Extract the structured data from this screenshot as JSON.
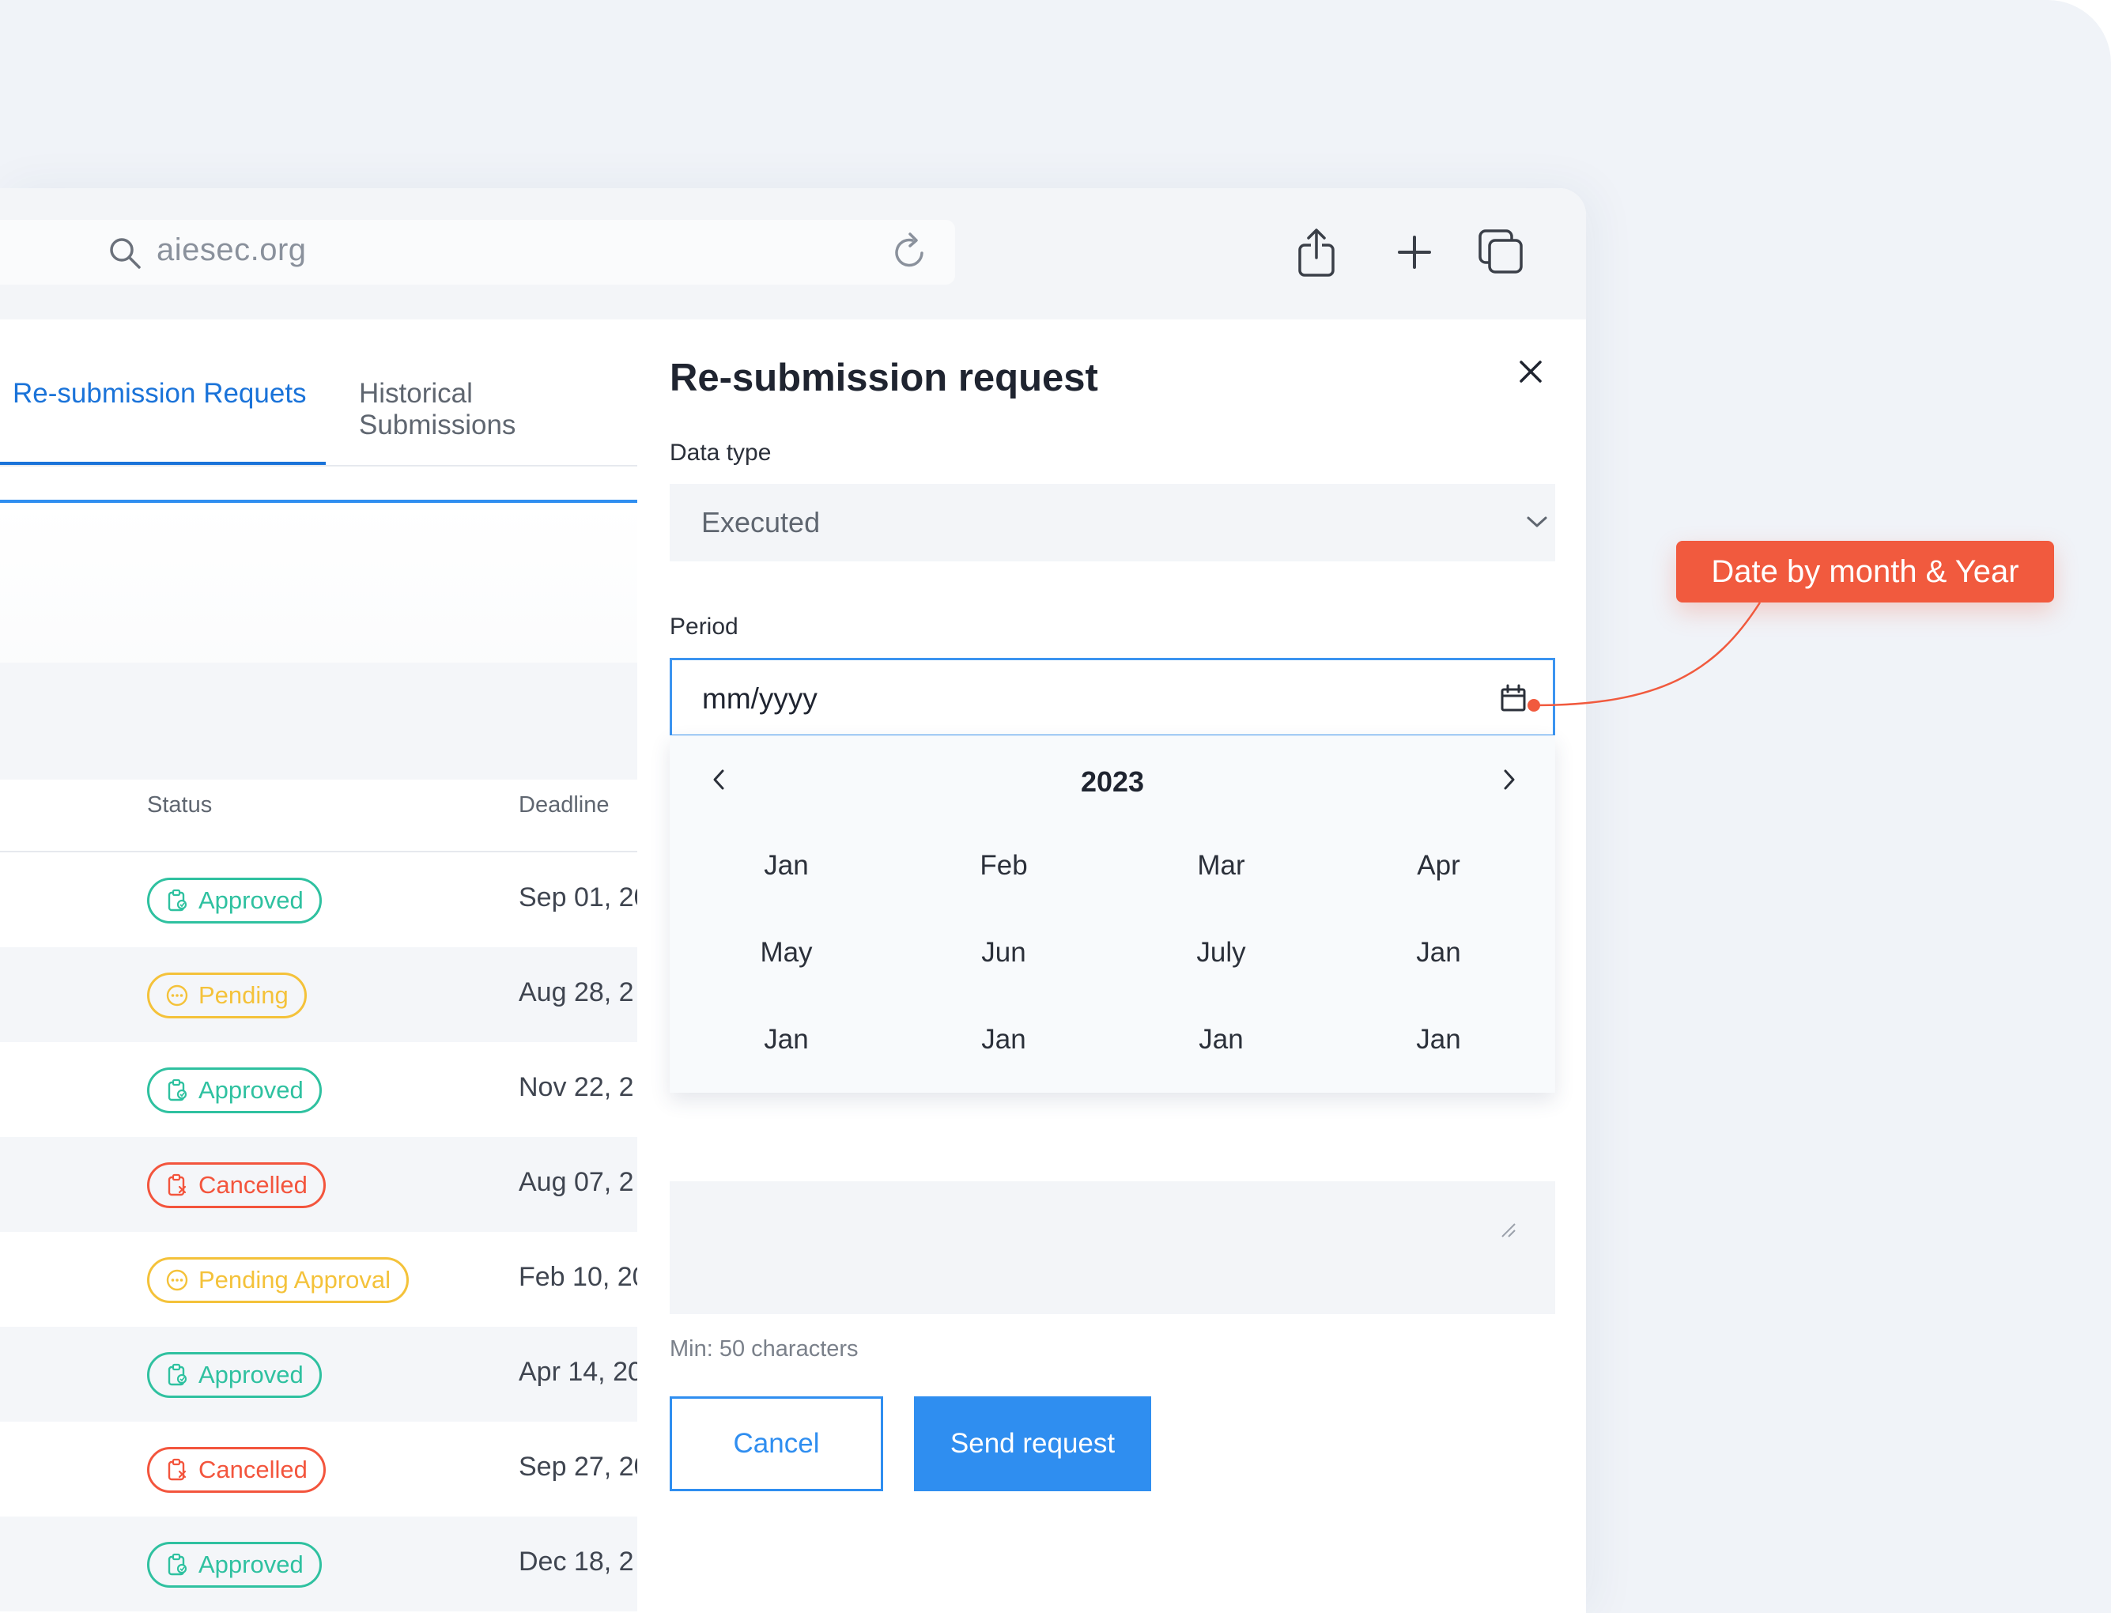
{
  "browser": {
    "address": "aiesec.org"
  },
  "tabs": [
    {
      "label": "Re-submission Requets"
    },
    {
      "label": "Historical Submissions"
    }
  ],
  "table": {
    "headers": {
      "status": "Status",
      "deadline": "Deadline"
    },
    "rows": [
      {
        "status": "Approved",
        "status_type": "approved",
        "deadline": "Sep 01, 20"
      },
      {
        "status": "Pending",
        "status_type": "pending",
        "deadline": "Aug 28, 2"
      },
      {
        "status": "Approved",
        "status_type": "approved",
        "deadline": "Nov 22, 2"
      },
      {
        "status": "Cancelled",
        "status_type": "cancelled",
        "deadline": "Aug 07, 2"
      },
      {
        "status": "Pending Approval",
        "status_type": "pending",
        "deadline": "Feb 10, 20"
      },
      {
        "status": "Approved",
        "status_type": "approved",
        "deadline": "Apr 14, 20"
      },
      {
        "status": "Cancelled",
        "status_type": "cancelled",
        "deadline": "Sep 27, 20"
      },
      {
        "status": "Approved",
        "status_type": "approved",
        "deadline": "Dec 18, 2"
      }
    ]
  },
  "drawer": {
    "title": "Re-submission request",
    "data_type_label": "Data type",
    "data_type_value": "Executed",
    "period_label": "Period",
    "period_placeholder": "mm/yyyy",
    "hint": "Min: 50 characters",
    "cancel_label": "Cancel",
    "send_label": "Send request"
  },
  "picker": {
    "year": "2023",
    "months": [
      "Jan",
      "Feb",
      "Mar",
      "Apr",
      "May",
      "Jun",
      "July",
      "Jan",
      "Jan",
      "Jan",
      "Jan",
      "Jan"
    ]
  },
  "annotation": {
    "text": "Date by month & Year"
  },
  "colors": {
    "accent": "#2f8ef0",
    "approved": "#2fc1a0",
    "pending": "#f4c23a",
    "cancelled": "#f3553d",
    "annotation": "#f15a3e"
  }
}
